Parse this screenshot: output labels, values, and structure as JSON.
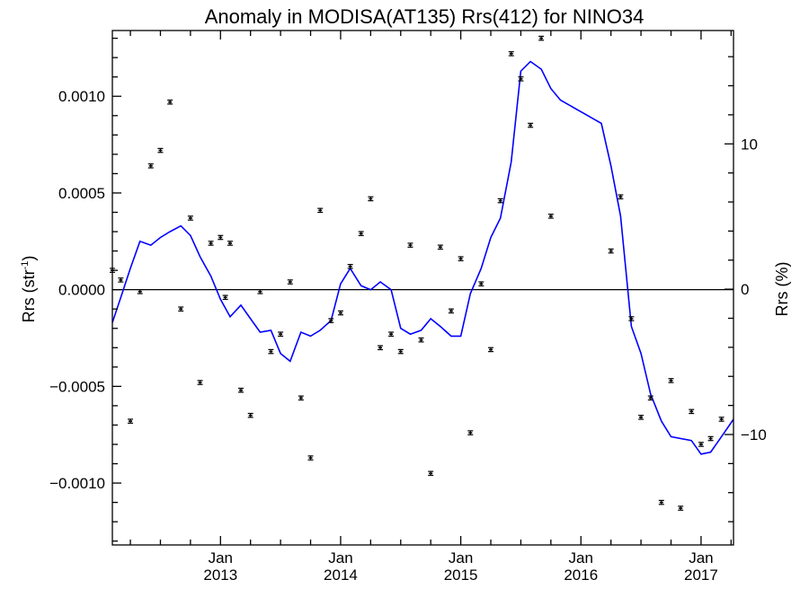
{
  "chart_data": {
    "type": "scatter",
    "title": "Anomaly in MODISA(AT135) Rrs(412) for NINO34",
    "ylabel_left": "Rrs (str",
    "ylabel_left_sup": "-1",
    "ylabel_left_close": ")",
    "ylabel_right": "Rrs (%)",
    "x_unit": "decimal year",
    "xlim": [
      2012.1,
      2017.27
    ],
    "ylim_left": [
      -0.00132,
      0.00134
    ],
    "ylim_right": [
      -17.6,
      17.8
    ],
    "zero_line": true,
    "grid": false,
    "x_ticks": [
      {
        "month": "Jan",
        "year": "2013",
        "x": 2013.0
      },
      {
        "month": "Jan",
        "year": "2014",
        "x": 2014.0
      },
      {
        "month": "Jan",
        "year": "2015",
        "x": 2015.0
      },
      {
        "month": "Jan",
        "year": "2016",
        "x": 2016.0
      },
      {
        "month": "Jan",
        "year": "2017",
        "x": 2017.0
      }
    ],
    "y_ticks_left": [
      {
        "label": "0.0010",
        "value": 0.001
      },
      {
        "label": "0.0005",
        "value": 0.0005
      },
      {
        "label": "0.0000",
        "value": 0.0
      },
      {
        "label": "−0.0005",
        "value": -0.0005
      },
      {
        "label": "−0.0010",
        "value": -0.001
      }
    ],
    "y_ticks_right": [
      {
        "label": "10",
        "value": 10
      },
      {
        "label": "0",
        "value": 0
      },
      {
        "label": "−10",
        "value": -10
      }
    ],
    "series": [
      {
        "kind": "points_with_error_bars",
        "axis": "left",
        "color": "#000000",
        "x": [
          2012.1,
          2012.17,
          2012.25,
          2012.33,
          2012.42,
          2012.5,
          2012.58,
          2012.67,
          2012.75,
          2012.83,
          2012.92,
          2013.0,
          2013.04,
          2013.08,
          2013.17,
          2013.25,
          2013.33,
          2013.42,
          2013.5,
          2013.58,
          2013.67,
          2013.75,
          2013.83,
          2013.92,
          2014.0,
          2014.08,
          2014.17,
          2014.25,
          2014.33,
          2014.42,
          2014.5,
          2014.58,
          2014.67,
          2014.75,
          2014.83,
          2014.92,
          2015.0,
          2015.08,
          2015.17,
          2015.25,
          2015.33,
          2015.42,
          2015.5,
          2015.58,
          2015.67,
          2015.75,
          2016.25,
          2016.33,
          2016.42,
          2016.5,
          2016.58,
          2016.67,
          2016.75,
          2016.83,
          2016.92,
          2017.0,
          2017.08,
          2017.17
        ],
        "y": [
          0.0001,
          5e-05,
          -0.00068,
          -1e-05,
          0.00064,
          0.00072,
          0.00097,
          -0.0001,
          0.00037,
          -0.00048,
          0.00024,
          0.00027,
          -4e-05,
          0.00024,
          -0.00052,
          -0.00065,
          -1e-05,
          -0.00032,
          -0.00023,
          4e-05,
          -0.00056,
          -0.00087,
          0.00041,
          -0.00016,
          -0.00012,
          0.00012,
          0.00029,
          0.00047,
          -0.0003,
          -0.00023,
          -0.00032,
          0.00023,
          -0.00026,
          -0.00095,
          0.00022,
          -0.00011,
          0.00016,
          -0.00074,
          3e-05,
          -0.00031,
          0.00046,
          0.00122,
          0.00109,
          0.00085,
          0.0013,
          0.00038,
          0.0002,
          0.00048,
          -0.00015,
          -0.00066,
          -0.00056,
          -0.0011,
          -0.00047,
          -0.00113,
          -0.00063,
          -0.0008,
          -0.00077,
          -0.00067
        ]
      },
      {
        "kind": "line",
        "axis": "left",
        "color": "#0000ff",
        "x": [
          2012.1,
          2012.17,
          2012.25,
          2012.33,
          2012.42,
          2012.5,
          2012.58,
          2012.67,
          2012.75,
          2012.83,
          2012.92,
          2013.0,
          2013.08,
          2013.17,
          2013.25,
          2013.33,
          2013.42,
          2013.5,
          2013.58,
          2013.67,
          2013.75,
          2013.83,
          2013.92,
          2014.0,
          2014.08,
          2014.17,
          2014.25,
          2014.33,
          2014.42,
          2014.5,
          2014.58,
          2014.67,
          2014.75,
          2014.83,
          2014.92,
          2015.0,
          2015.08,
          2015.17,
          2015.25,
          2015.33,
          2015.42,
          2015.5,
          2015.58,
          2015.67,
          2015.75,
          2015.83,
          2016.17,
          2016.25,
          2016.33,
          2016.42,
          2016.5,
          2016.58,
          2016.67,
          2016.75,
          2016.92,
          2017.0,
          2017.08,
          2017.17,
          2017.27
        ],
        "y": [
          -0.00017,
          -4e-05,
          0.00011,
          0.00025,
          0.00023,
          0.00027,
          0.0003,
          0.00033,
          0.00028,
          0.00017,
          7e-05,
          -5e-05,
          -0.00014,
          -8e-05,
          -0.00015,
          -0.00022,
          -0.00021,
          -0.00033,
          -0.00037,
          -0.00022,
          -0.00024,
          -0.00021,
          -0.00016,
          3e-05,
          0.00011,
          2e-05,
          0.0,
          4e-05,
          0.0,
          -0.0002,
          -0.00023,
          -0.00021,
          -0.00015,
          -0.00019,
          -0.00024,
          -0.00024,
          -2e-05,
          0.00011,
          0.00027,
          0.00037,
          0.00066,
          0.00113,
          0.00118,
          0.00114,
          0.00104,
          0.00098,
          0.00086,
          0.00064,
          0.00038,
          -0.00019,
          -0.00033,
          -0.00054,
          -0.00068,
          -0.00076,
          -0.00078,
          -0.00085,
          -0.00084,
          -0.00076,
          -0.00067
        ]
      }
    ],
    "colors": {
      "points": "#000000",
      "line": "#0000ff",
      "axes": "#000000"
    }
  }
}
